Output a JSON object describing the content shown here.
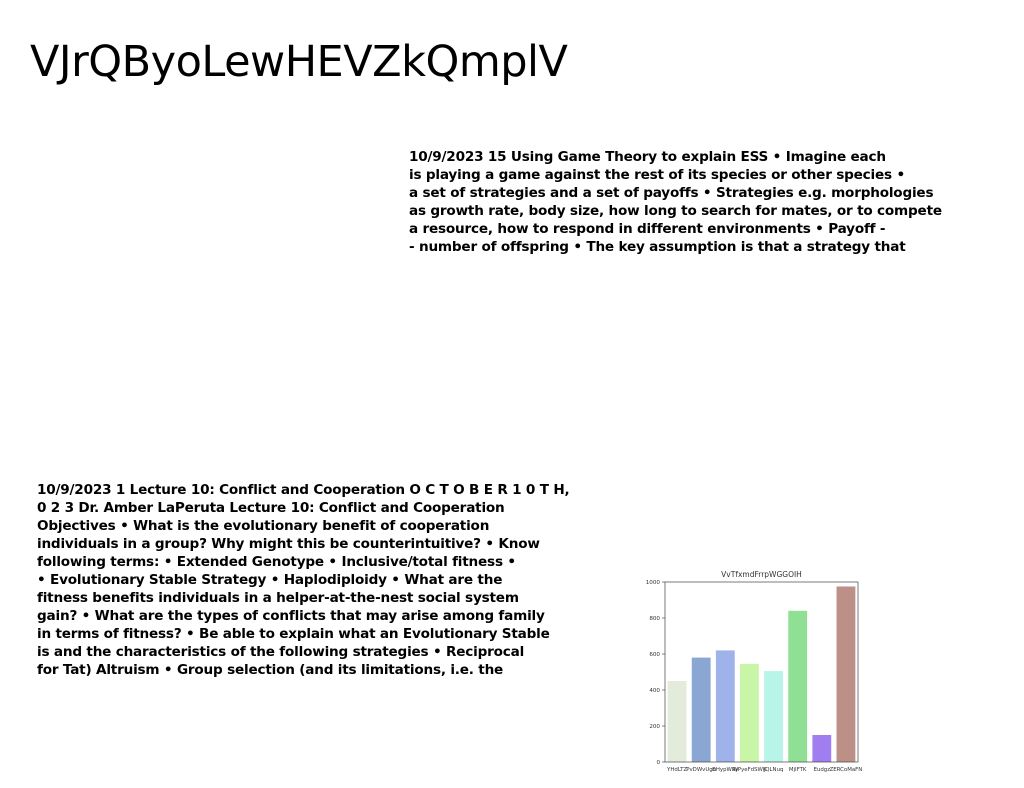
{
  "page": {
    "title": "VJrQByoLewHEVZkQmplV"
  },
  "block_ess": {
    "lines": [
      "10/9/2023 15 Using Game Theory to explain ESS • Imagine each",
      "is playing a game against the rest of its species or other species •",
      "a set of strategies and a set of payoffs • Strategies e.g. morphologies",
      "as growth rate, body size, how long to search for mates, or to compete",
      "a resource, how to respond in different environments • Payoff -",
      "- number of offspring • The key assumption is that a strategy that"
    ]
  },
  "block_lecture": {
    "lines": [
      "10/9/2023 1 Lecture 10: Conflict and Cooperation O C T O B E R 1 0 T H,",
      "0 2 3 Dr. Amber LaPeruta Lecture 10: Conflict and Cooperation",
      "Objectives • What is the evolutionary benefit of cooperation",
      "individuals in a group? Why might this be counterintuitive? • Know",
      "following terms: • Extended Genotype • Inclusive/total fitness •",
      "• Evolutionary Stable Strategy • Haplodiploidy • What are the",
      "fitness benefits individuals in a helper-at-the-nest social system",
      "gain? • What are the types of conflicts that may arise among family",
      "in terms of fitness? • Be able to explain what an Evolutionary Stable",
      "is and the characteristics of the following strategies • Reciprocal",
      "for Tat) Altruism • Group selection (and its limitations, i.e. the"
    ]
  },
  "chart_data": {
    "type": "bar",
    "title": "VvTfxmdFrrpWGGOIH",
    "categories": [
      "YHdLTZ",
      "PvDWvUgu",
      "BHypWRy",
      "WPyeFdSWK",
      "JQLNuq",
      "MjIFTK",
      "Eudgz",
      "ZERCoMaFN"
    ],
    "values": [
      450,
      580,
      620,
      545,
      505,
      840,
      150,
      975
    ],
    "colors": [
      "#e3ecda",
      "#8aa6d2",
      "#9fb3ea",
      "#c9f6a6",
      "#b6f5e8",
      "#8fe094",
      "#a07ef0",
      "#bc8f87"
    ],
    "ylim": [
      0,
      1000
    ],
    "yticks": [
      "0",
      "200",
      "400",
      "600",
      "800",
      "1000"
    ],
    "grid": false,
    "xlabel": "",
    "ylabel": ""
  }
}
